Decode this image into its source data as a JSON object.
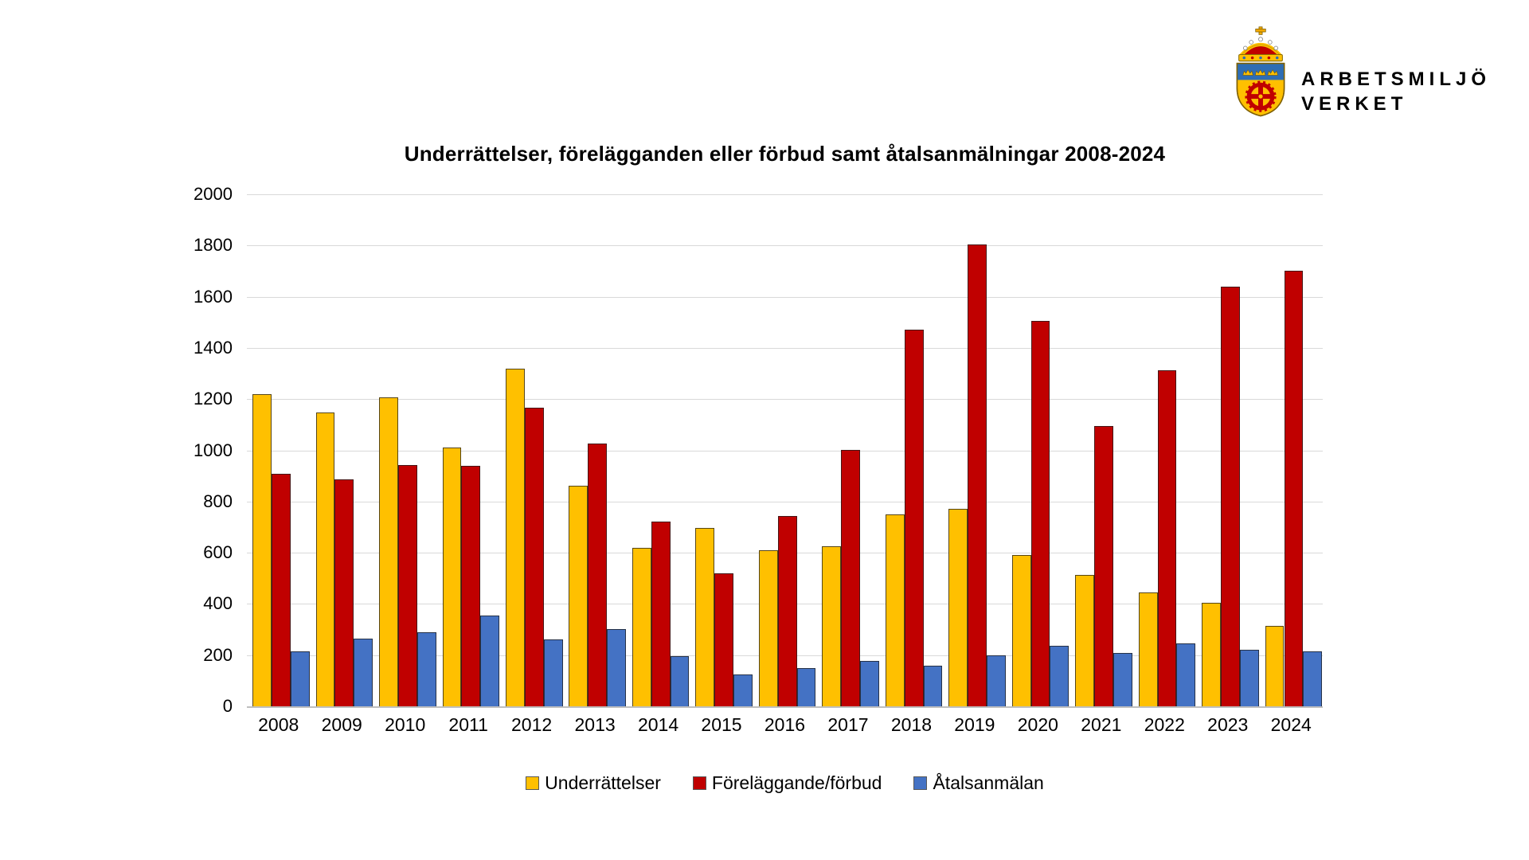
{
  "logo": {
    "line1": "ARBETSMILJÖ",
    "line2": "VERKET"
  },
  "chart_data": {
    "type": "bar",
    "title": "Underrättelser, förelägganden eller förbud samt åtalsanmälningar 2008-2024",
    "categories": [
      "2008",
      "2009",
      "2010",
      "2011",
      "2012",
      "2013",
      "2014",
      "2015",
      "2016",
      "2017",
      "2018",
      "2019",
      "2020",
      "2021",
      "2022",
      "2023",
      "2024"
    ],
    "series": [
      {
        "name": "Underrättelser",
        "color": "#FFC000",
        "values": [
          1220,
          1148,
          1208,
          1010,
          1318,
          862,
          618,
          697,
          610,
          625,
          750,
          770,
          590,
          512,
          445,
          405,
          313
        ]
      },
      {
        "name": "Föreläggande/förbud",
        "color": "#C00000",
        "values": [
          908,
          888,
          942,
          940,
          1167,
          1028,
          722,
          518,
          742,
          1002,
          1472,
          1805,
          1507,
          1094,
          1313,
          1640,
          1702
        ]
      },
      {
        "name": "Åtalsanmälan",
        "color": "#4472C4",
        "values": [
          215,
          263,
          290,
          355,
          262,
          302,
          195,
          125,
          148,
          176,
          160,
          200,
          235,
          210,
          247,
          222,
          215
        ]
      }
    ],
    "xlabel": "",
    "ylabel": "",
    "ylim": [
      0,
      2000
    ],
    "ytick_step": 200,
    "grid": true,
    "gridline_color": "#D9D9D9",
    "legend_position": "bottom"
  }
}
